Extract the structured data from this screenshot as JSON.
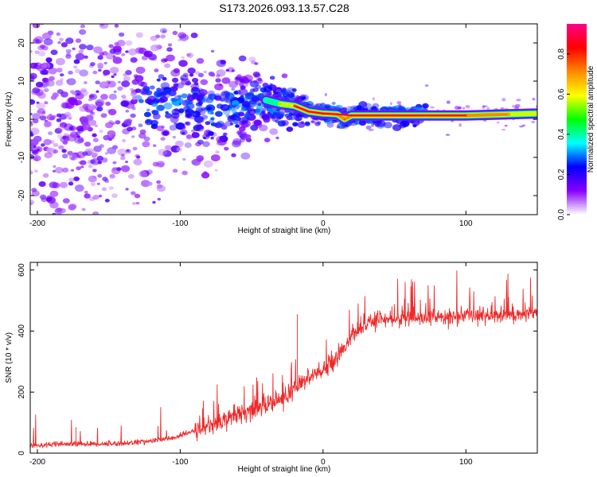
{
  "title": "S173.2026.093.13.57.C28",
  "chart_data": [
    {
      "type": "heatmap",
      "name": "spectrogram",
      "xlabel": "Height of straight line (km)",
      "ylabel": "Frequency (Hz)",
      "xlim": [
        -205,
        150
      ],
      "ylim": [
        -25,
        25
      ],
      "xticks": [
        -200,
        -100,
        0,
        100
      ],
      "yticks": [
        -20,
        -10,
        0,
        10,
        20
      ],
      "colorbar": {
        "label": "Normalized spectral amplitude",
        "range": [
          0.0,
          0.95
        ],
        "ticks": [
          0.0,
          0.2,
          0.4,
          0.6,
          0.8
        ],
        "tick_labels": [
          "0.0",
          "0.2",
          "0.4",
          "0.6",
          "0.8"
        ],
        "colormap": [
          "#ffffff",
          "#8800ff",
          "#0000ff",
          "#00ffff",
          "#00ff00",
          "#ffff00",
          "#ff8800",
          "#ff0000",
          "#ff0088"
        ]
      },
      "ridge": {
        "description": "Dominant Doppler trace",
        "points": [
          {
            "x": -100,
            "y": 4,
            "amp": 0.22
          },
          {
            "x": -80,
            "y": 2,
            "amp": 0.3
          },
          {
            "x": -60,
            "y": 3,
            "amp": 0.33
          },
          {
            "x": -40,
            "y": 5,
            "amp": 0.4
          },
          {
            "x": -30,
            "y": 4,
            "amp": 0.55
          },
          {
            "x": -20,
            "y": 3.5,
            "amp": 0.85
          },
          {
            "x": -10,
            "y": 2,
            "amp": 0.85
          },
          {
            "x": 0,
            "y": 1.5,
            "amp": 0.88
          },
          {
            "x": 10,
            "y": 1.3,
            "amp": 0.88
          },
          {
            "x": 15,
            "y": 0,
            "amp": 0.8
          },
          {
            "x": 20,
            "y": 1,
            "amp": 0.88
          },
          {
            "x": 50,
            "y": 1,
            "amp": 0.9
          },
          {
            "x": 100,
            "y": 1,
            "amp": 0.9
          },
          {
            "x": 130,
            "y": 1.3,
            "amp": 0.7
          },
          {
            "x": 150,
            "y": 1.5,
            "amp": 0.6
          }
        ]
      }
    },
    {
      "type": "line",
      "name": "snr",
      "xlabel": "Height of straight line (km)",
      "ylabel": "SNR (10 * v/v)",
      "xlim": [
        -205,
        150
      ],
      "ylim": [
        0,
        625
      ],
      "xticks": [
        -200,
        -100,
        0,
        100
      ],
      "yticks": [
        0,
        200,
        400,
        600
      ],
      "series": [
        {
          "name": "SNR",
          "color": "#ee2a2a",
          "x": [
            -205,
            -190,
            -175,
            -160,
            -140,
            -120,
            -105,
            -95,
            -85,
            -75,
            -65,
            -55,
            -45,
            -35,
            -25,
            -18,
            -12,
            -6,
            0,
            6,
            12,
            18,
            24,
            30,
            40,
            55,
            70,
            85,
            100,
            115,
            130,
            150
          ],
          "y": [
            25,
            28,
            30,
            30,
            32,
            40,
            50,
            65,
            80,
            100,
            120,
            135,
            150,
            165,
            185,
            215,
            240,
            255,
            270,
            300,
            330,
            370,
            400,
            420,
            440,
            440,
            445,
            445,
            450,
            450,
            455,
            455
          ]
        }
      ],
      "annotations": [
        {
          "x": -173,
          "y": 85,
          "text": ""
        },
        {
          "x": -18,
          "y": 455,
          "text": ""
        }
      ]
    }
  ]
}
